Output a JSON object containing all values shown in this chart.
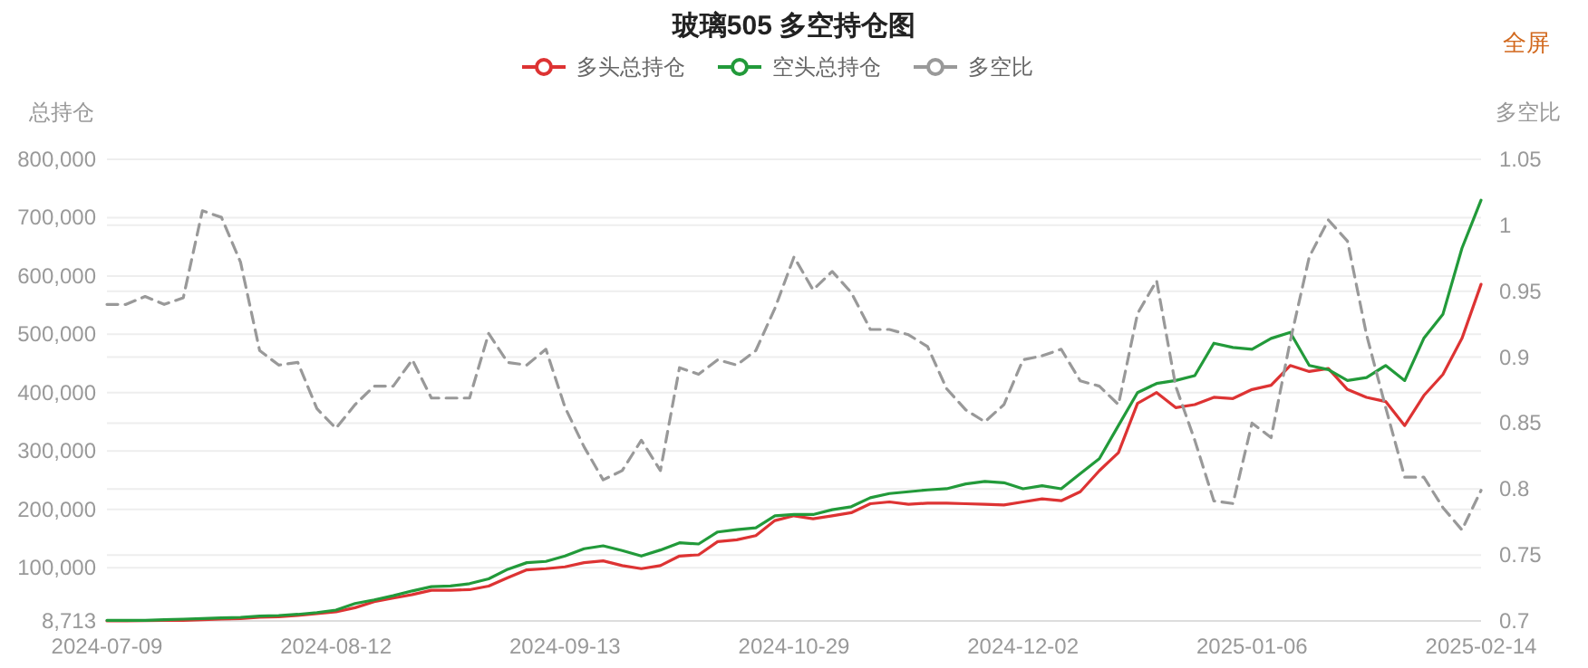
{
  "chart_data": {
    "type": "line",
    "title": "玻璃505 多空持仓图",
    "ylabel": "总持仓",
    "y2label": "多空比",
    "annotations": [
      "全屏"
    ],
    "categories": [
      "2024-07-09",
      null,
      null,
      null,
      null,
      null,
      null,
      null,
      null,
      null,
      null,
      null,
      "2024-08-12",
      null,
      null,
      null,
      null,
      null,
      null,
      null,
      null,
      null,
      null,
      null,
      "2024-09-13",
      null,
      null,
      null,
      null,
      null,
      null,
      null,
      null,
      null,
      null,
      null,
      "2024-10-29",
      null,
      null,
      null,
      null,
      null,
      null,
      null,
      null,
      null,
      null,
      null,
      "2024-12-02",
      null,
      null,
      null,
      null,
      null,
      null,
      null,
      null,
      null,
      null,
      null,
      "2025-01-06",
      null,
      null,
      null,
      null,
      null,
      null,
      null,
      null,
      null,
      null,
      null,
      "2025-02-14"
    ],
    "ylim": [
      8713,
      800000
    ],
    "yticks": [
      {
        "value": 8713,
        "label": "8,713"
      },
      {
        "value": 100000,
        "label": "100,000"
      },
      {
        "value": 200000,
        "label": "200,000"
      },
      {
        "value": 300000,
        "label": "300,000"
      },
      {
        "value": 400000,
        "label": "400,000"
      },
      {
        "value": 500000,
        "label": "500,000"
      },
      {
        "value": 600000,
        "label": "600,000"
      },
      {
        "value": 700000,
        "label": "700,000"
      },
      {
        "value": 800000,
        "label": "800,000"
      }
    ],
    "y2lim": [
      0.7,
      1.05
    ],
    "y2ticks": [
      0.7,
      0.75,
      0.8,
      0.85,
      0.9,
      0.95,
      1,
      1.05
    ],
    "grid": "y",
    "legend": "top",
    "marker": "none",
    "series": [
      {
        "name": "多头总持仓",
        "color": "#dd3333",
        "line_style": "solid",
        "values": [
          8713,
          9000,
          9200,
          9500,
          9700,
          10800,
          11800,
          12800,
          14900,
          15900,
          18000,
          21100,
          24200,
          31400,
          41700,
          47900,
          54000,
          61300,
          61300,
          62300,
          68500,
          82900,
          96300,
          98300,
          101400,
          108600,
          111700,
          103500,
          98300,
          103500,
          120000,
          122000,
          144700,
          147800,
          155000,
          180800,
          189000,
          183900,
          189000,
          194200,
          209600,
          212700,
          208600,
          210600,
          210600,
          209600,
          208600,
          207600,
          212700,
          217900,
          214800,
          230200,
          266300,
          297200,
          381700,
          400200,
          374400,
          379600,
          392000,
          389900,
          405400,
          412600,
          446600,
          436300,
          441400,
          405400,
          392000,
          384800,
          343600,
          395000,
          431200,
          493000,
          585700
        ]
      },
      {
        "name": "空头总持仓",
        "color": "#229a3a",
        "line_style": "solid",
        "values": [
          9700,
          9700,
          9800,
          10800,
          11800,
          12800,
          13900,
          14900,
          17000,
          18000,
          20000,
          23100,
          27300,
          38600,
          44800,
          52000,
          60200,
          67400,
          68500,
          72600,
          80800,
          97300,
          108600,
          110700,
          120000,
          132400,
          137500,
          129300,
          120000,
          130300,
          142600,
          140600,
          161200,
          165300,
          168400,
          189000,
          191100,
          191100,
          199300,
          204500,
          219900,
          227100,
          230200,
          233300,
          235300,
          243600,
          247700,
          245600,
          235300,
          240500,
          235300,
          261100,
          286900,
          343600,
          400200,
          415700,
          420800,
          429100,
          484700,
          477500,
          474400,
          493000,
          503300,
          446600,
          439400,
          420800,
          426000,
          446600,
          420800,
          493000,
          534200,
          647500,
          729900
        ]
      },
      {
        "name": "多空比",
        "color": "#999999",
        "line_style": "dashed",
        "axis": "y2",
        "values": [
          0.94,
          0.94,
          0.946,
          0.94,
          0.945,
          1.011,
          1.006,
          0.972,
          0.905,
          0.894,
          0.896,
          0.861,
          0.846,
          0.864,
          0.878,
          0.878,
          0.898,
          0.869,
          0.869,
          0.869,
          0.918,
          0.896,
          0.894,
          0.906,
          0.862,
          0.832,
          0.807,
          0.814,
          0.837,
          0.814,
          0.892,
          0.887,
          0.898,
          0.894,
          0.905,
          0.937,
          0.976,
          0.951,
          0.965,
          0.949,
          0.921,
          0.921,
          0.917,
          0.908,
          0.876,
          0.86,
          0.851,
          0.864,
          0.898,
          0.901,
          0.906,
          0.882,
          0.878,
          0.864,
          0.933,
          0.958,
          0.878,
          0.837,
          0.791,
          0.789,
          0.85,
          0.839,
          0.912,
          0.976,
          1.004,
          0.988,
          0.917,
          0.862,
          0.809,
          0.809,
          0.786,
          0.769,
          0.799
        ]
      }
    ]
  }
}
